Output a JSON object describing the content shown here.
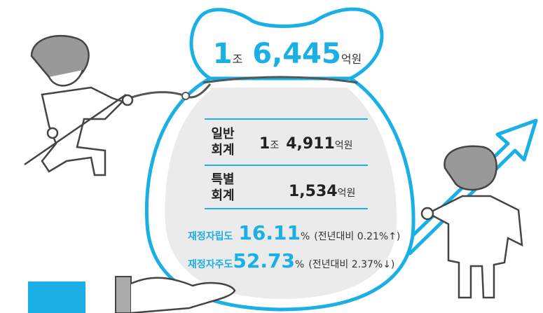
{
  "total": {
    "trillion": "1",
    "trillion_unit": "조",
    "amount": "6,445",
    "unit": "억원"
  },
  "accounts": [
    {
      "label_line1": "일반",
      "label_line2": "회계",
      "trillion": "1",
      "trillion_unit": "조",
      "amount": "4,911",
      "unit": "억원"
    },
    {
      "label_line1": "특별",
      "label_line2": "회계",
      "amount": "1,534",
      "unit": "억원"
    }
  ],
  "indicators": [
    {
      "name": "재정자립도",
      "value": "16.11",
      "unit": "%",
      "change": "(전년대비 0.21%↑)"
    },
    {
      "name": "재정자주도",
      "value": "52.73",
      "unit": "%",
      "change": "(전년대비 2.37%↓)"
    }
  ]
}
